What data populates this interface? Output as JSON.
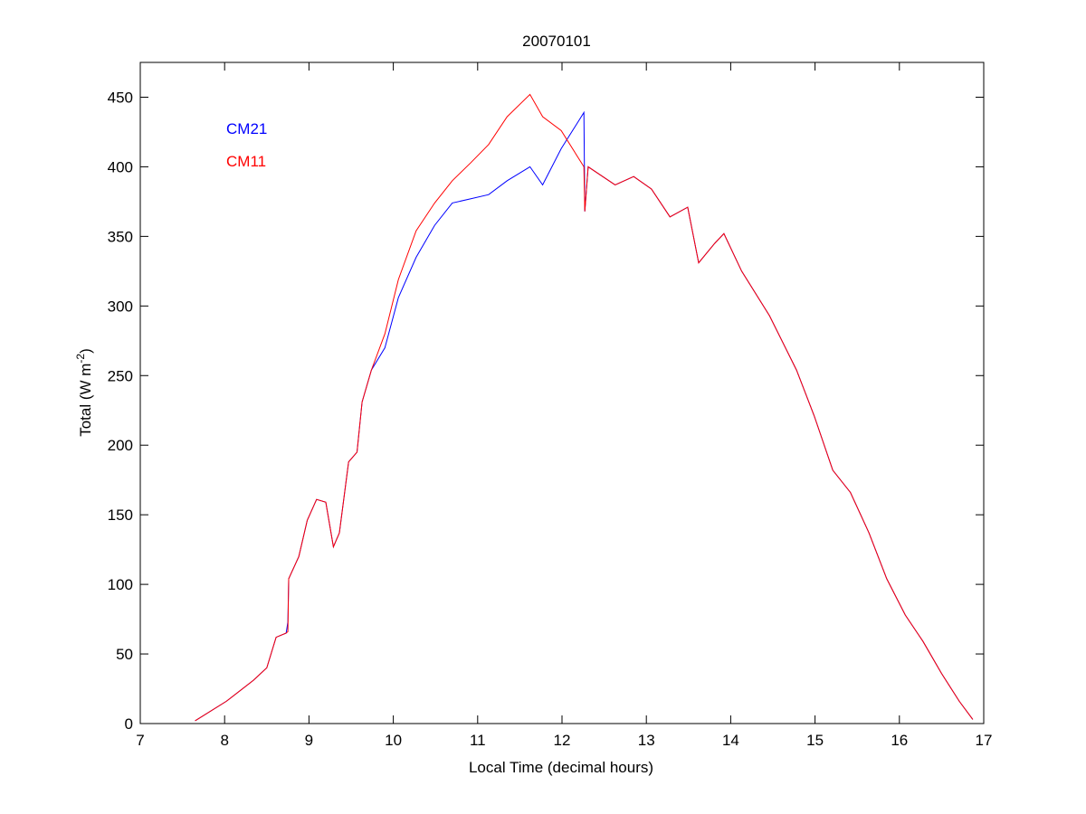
{
  "chart_data": {
    "type": "line",
    "title": "20070101",
    "xlabel": "Local Time (decimal hours)",
    "ylabel_main": "Total (W m",
    "ylabel_sup": "-2",
    "ylabel_close": ")",
    "xlim": [
      7,
      17
    ],
    "ylim": [
      0,
      475
    ],
    "xticks": [
      7,
      8,
      9,
      10,
      11,
      12,
      13,
      14,
      15,
      16,
      17
    ],
    "yticks": [
      0,
      50,
      100,
      150,
      200,
      250,
      300,
      350,
      400,
      450
    ],
    "grid": false,
    "legend_position": "top-left",
    "series": [
      {
        "name": "CM21",
        "color": "#0000ff",
        "x": [
          7.65,
          8.02,
          8.34,
          8.5,
          8.61,
          8.73,
          8.75,
          8.76,
          8.88,
          8.98,
          9.09,
          9.2,
          9.29,
          9.36,
          9.47,
          9.57,
          9.63,
          9.74,
          9.9,
          10.06,
          10.27,
          10.49,
          10.7,
          10.92,
          11.13,
          11.35,
          11.62,
          11.77,
          11.99,
          12.26,
          12.27,
          12.31,
          12.63,
          12.85,
          13.06,
          13.28,
          13.49,
          13.62,
          13.81,
          13.92,
          14.13,
          14.46,
          14.78,
          14.99,
          15.21,
          15.42,
          15.64,
          15.85,
          16.07,
          16.28,
          16.5,
          16.71,
          16.87
        ],
        "y": [
          2,
          16,
          31,
          40,
          62,
          65,
          73,
          104,
          120,
          146,
          161,
          159,
          127,
          137,
          188,
          195,
          231,
          254,
          270,
          306,
          335,
          358,
          374,
          377,
          380,
          390,
          400,
          387,
          413,
          439,
          368,
          400,
          387,
          393,
          384,
          364,
          371,
          331,
          345,
          352,
          325,
          293,
          254,
          221,
          182,
          166,
          137,
          104,
          78,
          59,
          36,
          16,
          3
        ]
      },
      {
        "name": "CM11",
        "color": "#ff0000",
        "x": [
          7.65,
          8.02,
          8.34,
          8.5,
          8.61,
          8.73,
          8.75,
          8.76,
          8.88,
          8.98,
          9.09,
          9.2,
          9.29,
          9.36,
          9.47,
          9.57,
          9.63,
          9.74,
          9.9,
          10.06,
          10.27,
          10.49,
          10.7,
          10.92,
          11.13,
          11.35,
          11.62,
          11.77,
          11.99,
          12.26,
          12.27,
          12.31,
          12.63,
          12.85,
          13.06,
          13.28,
          13.49,
          13.62,
          13.81,
          13.92,
          14.13,
          14.46,
          14.78,
          14.99,
          15.21,
          15.42,
          15.64,
          15.85,
          16.07,
          16.28,
          16.5,
          16.71,
          16.87
        ],
        "y": [
          2,
          16,
          31,
          40,
          62,
          65,
          66,
          104,
          120,
          146,
          161,
          159,
          127,
          137,
          188,
          195,
          231,
          254,
          280,
          319,
          354,
          374,
          390,
          403,
          416,
          436,
          452,
          436,
          426,
          400,
          368,
          400,
          387,
          393,
          384,
          364,
          371,
          331,
          345,
          352,
          325,
          293,
          254,
          221,
          182,
          166,
          137,
          104,
          78,
          59,
          36,
          16,
          3
        ]
      }
    ]
  }
}
